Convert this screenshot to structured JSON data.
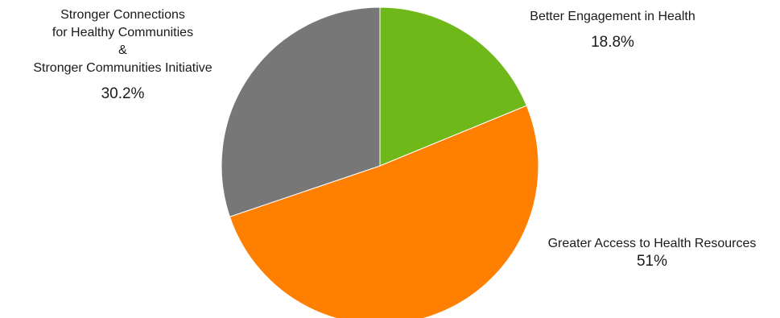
{
  "chart_data": {
    "type": "pie",
    "title": "",
    "slices": [
      {
        "key": "engagement",
        "label_lines": [
          "Better Engagement in Health"
        ],
        "value": 18.8,
        "value_label": "18.8%",
        "color": "#6fb81a"
      },
      {
        "key": "access",
        "label_lines": [
          "Greater Access to Health Resources"
        ],
        "value": 51,
        "value_label": "51%",
        "color": "#ff7f00"
      },
      {
        "key": "connections",
        "label_lines": [
          "Stronger Connections",
          "for Healthy Communities",
          "&",
          "Stronger Communities Initiative"
        ],
        "value": 30.2,
        "value_label": "30.2%",
        "color": "#777777"
      }
    ],
    "start_angle": "12 o'clock",
    "direction": "clockwise",
    "legend": "none"
  }
}
